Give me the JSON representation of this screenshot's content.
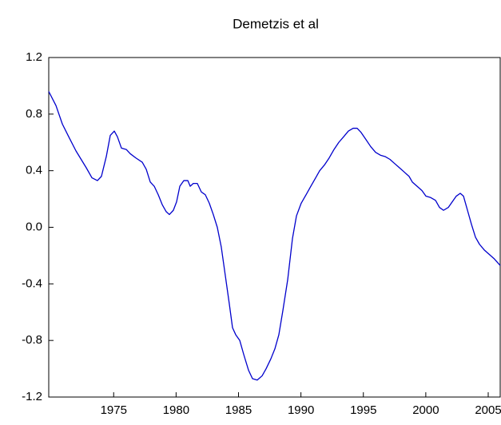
{
  "chart_data": {
    "type": "line",
    "title": "Demetzis et al",
    "xlim": [
      1969.8,
      2005.96
    ],
    "xticks": [
      1975,
      1980,
      1985,
      1990,
      1995,
      2000,
      2005
    ],
    "ylim": [
      -1.2,
      1.2
    ],
    "yticks": [
      1.2,
      0.8,
      0.4,
      {
        "value": 0,
        "label": "0.0"
      },
      -0.4,
      -0.8,
      -1.2
    ],
    "grid": false,
    "x": [
      1969.8,
      1970.38,
      1970.89,
      1971.4,
      1971.98,
      1972.81,
      1973.26,
      1973.7,
      1974.02,
      1974.41,
      1974.73,
      1975.05,
      1975.3,
      1975.62,
      1976.01,
      1976.33,
      1976.78,
      1977.29,
      1977.61,
      1977.93,
      1978.25,
      1978.57,
      1978.89,
      1979.21,
      1979.46,
      1979.78,
      1980.04,
      1980.3,
      1980.62,
      1980.94,
      1981.13,
      1981.38,
      1981.7,
      1982.02,
      1982.34,
      1982.66,
      1982.98,
      1983.3,
      1983.62,
      1983.94,
      1984.26,
      1984.52,
      1984.78,
      1985.1,
      1985.42,
      1985.8,
      1986.12,
      1986.5,
      1986.89,
      1987.21,
      1987.59,
      1987.91,
      1988.23,
      1988.55,
      1988.94,
      1989.32,
      1989.64,
      1990.02,
      1990.41,
      1990.79,
      1991.18,
      1991.5,
      1991.88,
      1992.26,
      1992.65,
      1993.03,
      1993.42,
      1993.8,
      1994.18,
      1994.5,
      1994.82,
      1995.21,
      1995.59,
      1995.98,
      1996.36,
      1996.74,
      1997.13,
      1997.51,
      1997.9,
      1998.28,
      1998.66,
      1998.92,
      1999.3,
      1999.69,
      2000.01,
      2000.39,
      2000.78,
      2001.1,
      2001.42,
      2001.8,
      2002.12,
      2002.44,
      2002.76,
      2003.02,
      2003.34,
      2003.66,
      2003.98,
      2004.3,
      2004.68,
      2005.06,
      2005.45,
      2005.96
    ],
    "series": [
      {
        "name": "Demetzis et al",
        "color": "#0000cc",
        "values": [
          0.96,
          0.86,
          0.73,
          0.64,
          0.54,
          0.42,
          0.35,
          0.33,
          0.36,
          0.5,
          0.65,
          0.68,
          0.64,
          0.56,
          0.55,
          0.52,
          0.49,
          0.46,
          0.41,
          0.32,
          0.29,
          0.23,
          0.16,
          0.11,
          0.09,
          0.12,
          0.18,
          0.29,
          0.33,
          0.33,
          0.29,
          0.31,
          0.31,
          0.25,
          0.23,
          0.17,
          0.09,
          0.0,
          -0.14,
          -0.34,
          -0.54,
          -0.71,
          -0.76,
          -0.8,
          -0.9,
          -1.01,
          -1.07,
          -1.08,
          -1.05,
          -1.0,
          -0.93,
          -0.86,
          -0.76,
          -0.59,
          -0.37,
          -0.08,
          0.08,
          0.17,
          0.23,
          0.29,
          0.35,
          0.4,
          0.44,
          0.49,
          0.55,
          0.6,
          0.64,
          0.68,
          0.7,
          0.7,
          0.67,
          0.62,
          0.57,
          0.53,
          0.51,
          0.5,
          0.48,
          0.45,
          0.42,
          0.39,
          0.36,
          0.32,
          0.29,
          0.26,
          0.22,
          0.21,
          0.19,
          0.14,
          0.12,
          0.14,
          0.18,
          0.22,
          0.24,
          0.22,
          0.12,
          0.02,
          -0.07,
          -0.12,
          -0.16,
          -0.19,
          -0.22,
          -0.27
        ]
      }
    ]
  }
}
